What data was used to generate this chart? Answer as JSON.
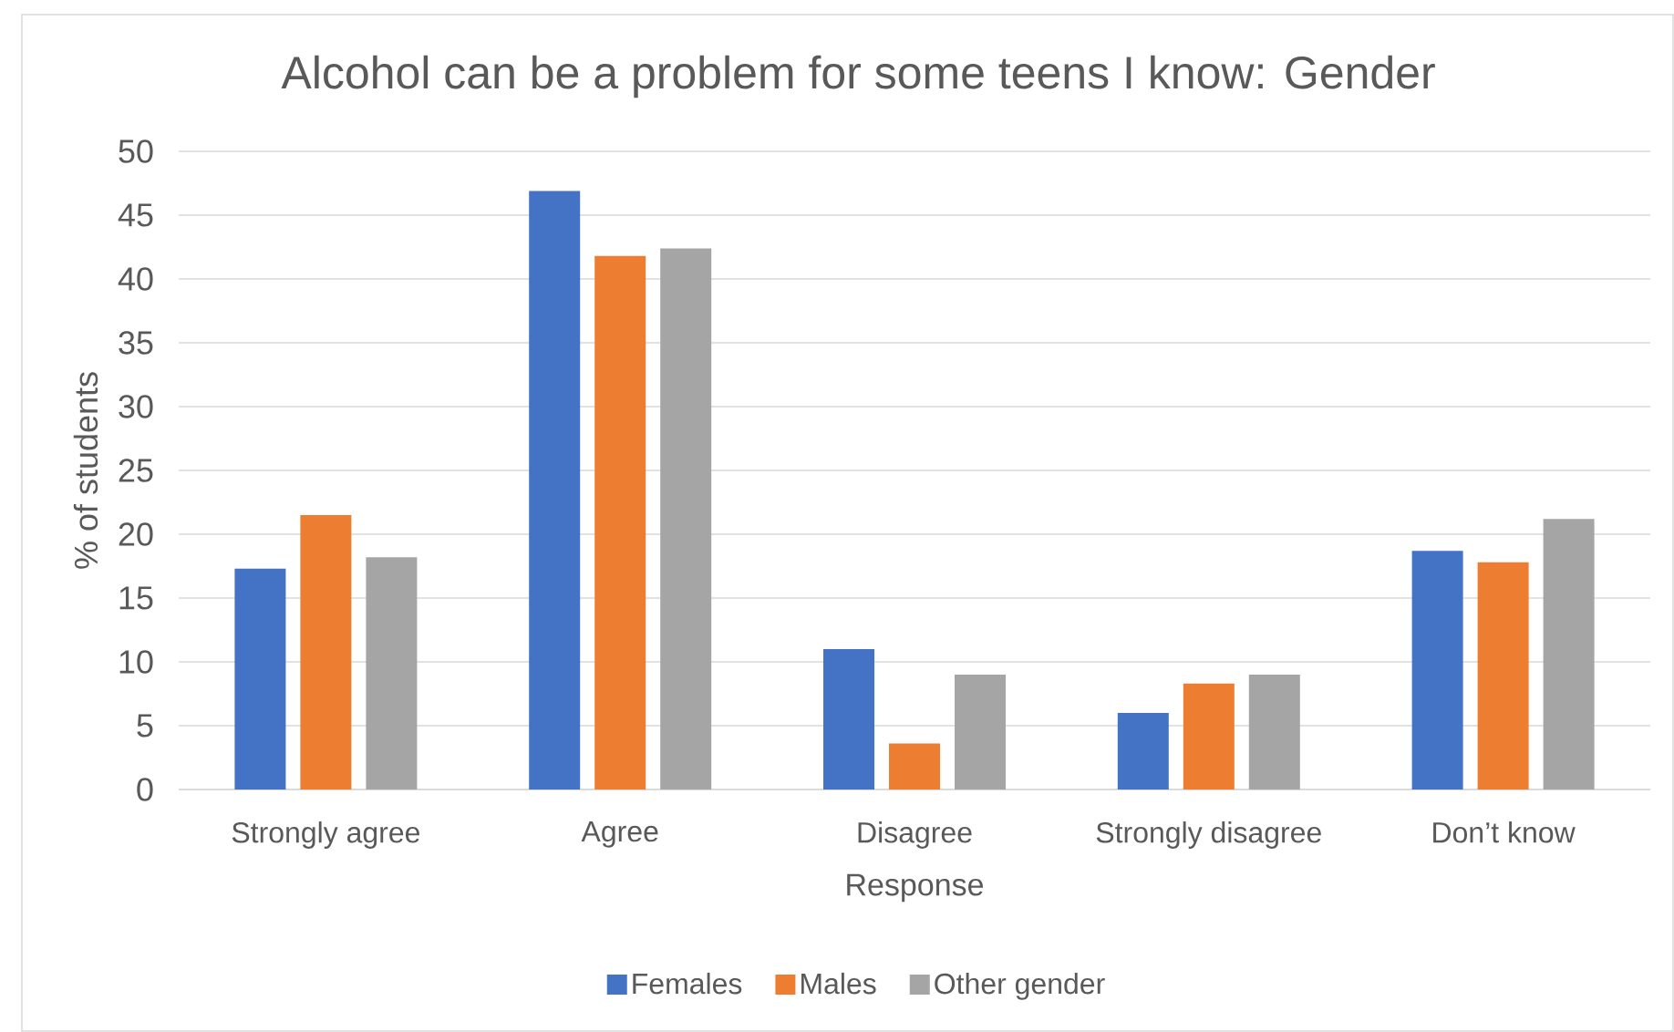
{
  "chart_data": {
    "type": "bar",
    "title": "Alcohol can be a problem for some teens I know: Gender",
    "xlabel": "Response",
    "ylabel": "% of students",
    "categories": [
      "Strongly agree",
      "Agree",
      "Disagree",
      "Strongly disagree",
      "Don’t know"
    ],
    "series": [
      {
        "name": "Females",
        "color": "#4472c4",
        "values": [
          17.3,
          46.9,
          11.0,
          6.0,
          18.7
        ]
      },
      {
        "name": "Males",
        "color": "#ed7d31",
        "values": [
          21.5,
          41.8,
          3.6,
          8.3,
          17.8
        ]
      },
      {
        "name": "Other gender",
        "color": "#a5a5a5",
        "values": [
          18.2,
          42.4,
          9.0,
          9.0,
          21.2
        ]
      }
    ],
    "ylim": [
      0,
      50
    ],
    "yticks": [
      0,
      5,
      10,
      15,
      20,
      25,
      30,
      35,
      40,
      45,
      50
    ],
    "grid": "y",
    "legend": "bottom"
  }
}
